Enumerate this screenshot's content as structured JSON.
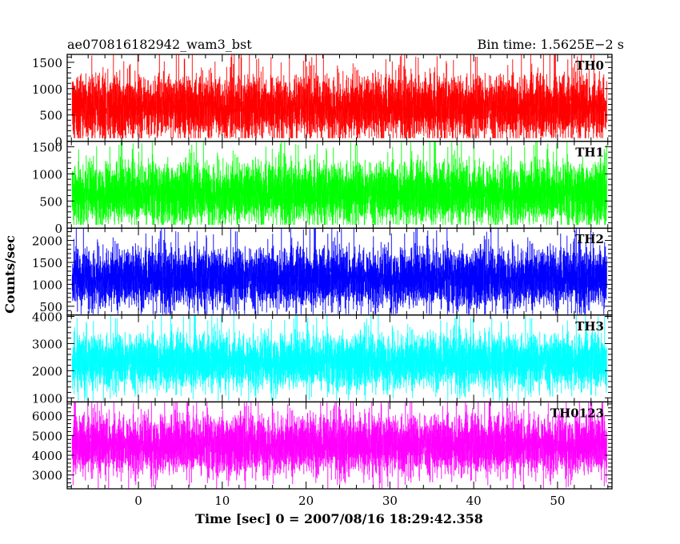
{
  "header": {
    "left_title": "ae070816182942_wam3_bst",
    "right_title": "Bin time: 1.5625E−2 s"
  },
  "chart_data": {
    "type": "line",
    "title": "ae070816182942_wam3_bst",
    "subtitle": "Bin time: 1.5625E−2 s",
    "xlabel": "Time [sec] 0 = 2007/08/16 18:29:42.358",
    "ylabel": "Counts/sec",
    "xlim": [
      -8.5,
      56.5
    ],
    "data_range_x": [
      -7.9,
      55.9
    ],
    "bin_time_s": 0.015625,
    "x_ticks": [
      0,
      10,
      20,
      30,
      40,
      50
    ],
    "grid": false,
    "panels": [
      {
        "name": "TH0",
        "color": "#ff0000",
        "ylim": [
          0,
          1650
        ],
        "yticks": [
          0,
          500,
          1000,
          1500
        ],
        "baseline": 650,
        "spread": 470,
        "clip_top": 1650,
        "clip_bottom": 60
      },
      {
        "name": "TH1",
        "color": "#00ff00",
        "ylim": [
          0,
          1600
        ],
        "yticks": [
          0,
          500,
          1000,
          1500
        ],
        "baseline": 650,
        "spread": 440,
        "clip_top": 1600,
        "clip_bottom": 60
      },
      {
        "name": "TH2",
        "color": "#0000ff",
        "ylim": [
          300,
          2280
        ],
        "yticks": [
          500,
          1000,
          1500,
          2000
        ],
        "baseline": 1150,
        "spread": 520,
        "clip_top": 2280,
        "clip_bottom": 320
      },
      {
        "name": "TH3",
        "color": "#00ffff",
        "ylim": [
          850,
          4050
        ],
        "yticks": [
          1000,
          2000,
          3000,
          4000
        ],
        "baseline": 2350,
        "spread": 780,
        "clip_top": 4050,
        "clip_bottom": 900
      },
      {
        "name": "TH0123",
        "color": "#ff00ff",
        "ylim": [
          2300,
          6700
        ],
        "yticks": [
          3000,
          4000,
          5000,
          6000
        ],
        "baseline": 4550,
        "spread": 1150,
        "clip_top": 6700,
        "clip_bottom": 2320
      }
    ]
  }
}
